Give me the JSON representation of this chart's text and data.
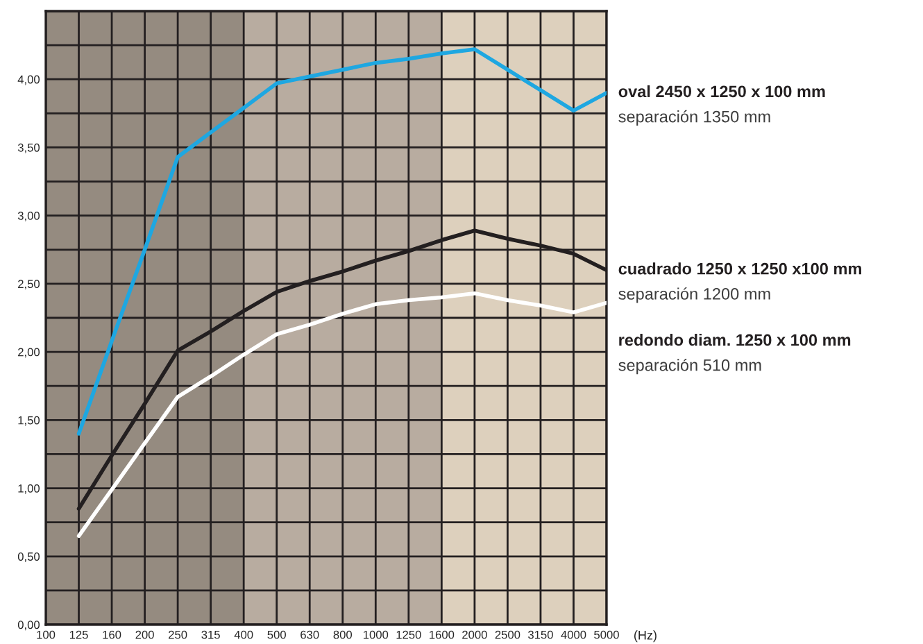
{
  "chart_data": {
    "type": "line",
    "xlabel": "(Hz)",
    "categories": [
      "100",
      "125",
      "160",
      "200",
      "250",
      "315",
      "400",
      "500",
      "630",
      "800",
      "1000",
      "1250",
      "1600",
      "2000",
      "2500",
      "3150",
      "4000",
      "5000"
    ],
    "series": [
      {
        "name": "oval 2450 x 1250 x 100 mm",
        "color": "#1ea7e1",
        "values": [
          null,
          1.4,
          2.08,
          2.75,
          3.43,
          3.61,
          3.79,
          3.97,
          4.02,
          4.07,
          4.12,
          4.15,
          4.19,
          4.22,
          4.07,
          3.92,
          3.77,
          3.9
        ]
      },
      {
        "name": "cuadrado 1250 x 1250 x100 mm",
        "color": "#231f20",
        "values": [
          null,
          0.85,
          1.24,
          1.62,
          2.01,
          2.15,
          2.3,
          2.44,
          2.52,
          2.59,
          2.67,
          2.74,
          2.82,
          2.89,
          2.83,
          2.78,
          2.72,
          2.6
        ]
      },
      {
        "name": "redondo diam. 1250 x 100 mm",
        "color": "#ffffff",
        "values": [
          null,
          0.65,
          0.99,
          1.33,
          1.67,
          1.82,
          1.98,
          2.13,
          2.2,
          2.28,
          2.35,
          2.38,
          2.4,
          2.43,
          2.38,
          2.34,
          2.29,
          2.36
        ]
      }
    ],
    "annotations": [
      "separación 1350 mm",
      "separación 1200 mm",
      "separación 510 mm"
    ],
    "bands": [
      {
        "axis": "x",
        "from": "100",
        "to": "400",
        "color": "#958b80"
      },
      {
        "axis": "x",
        "from": "400",
        "to": "1600",
        "color": "#b8aca0"
      },
      {
        "axis": "x",
        "from": "1600",
        "to": "5000",
        "color": "#ddd0bd"
      }
    ],
    "ylim": [
      0,
      4.5
    ],
    "yticks": [
      {
        "value": 0,
        "label": "0,00"
      },
      {
        "value": 0.25,
        "label": null
      },
      {
        "value": 0.5,
        "label": "0,50"
      },
      {
        "value": 0.75,
        "label": null
      },
      {
        "value": 1,
        "label": "1,00"
      },
      {
        "value": 1.25,
        "label": null
      },
      {
        "value": 1.5,
        "label": "1,50"
      },
      {
        "value": 1.75,
        "label": null
      },
      {
        "value": 2,
        "label": "2,00"
      },
      {
        "value": 2.25,
        "label": null
      },
      {
        "value": 2.5,
        "label": "2,50"
      },
      {
        "value": 2.75,
        "label": null
      },
      {
        "value": 3,
        "label": "3,00"
      },
      {
        "value": 3.25,
        "label": null
      },
      {
        "value": 3.5,
        "label": "3,50"
      },
      {
        "value": 3.75,
        "label": null
      },
      {
        "value": 4,
        "label": "4,00"
      },
      {
        "value": 4.25,
        "label": null
      },
      {
        "value": 4.5,
        "label": null
      }
    ],
    "grid": true
  }
}
